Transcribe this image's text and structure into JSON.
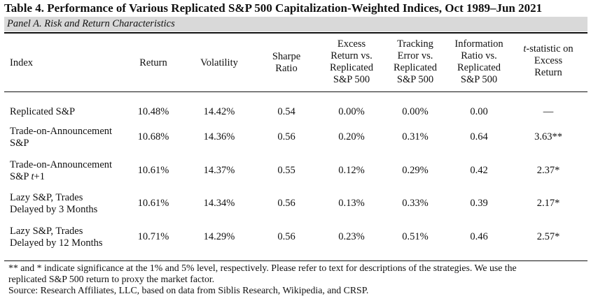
{
  "title": "Table 4. Performance of Various Replicated S&P 500 Capitalization-Weighted Indices, Oct 1989–Jun 2021",
  "panel": "Panel A. Risk and Return Characteristics",
  "headers": {
    "index": "Index",
    "return": "Return",
    "volatility": "Volatility",
    "sharpe": [
      "Sharpe",
      "Ratio"
    ],
    "excess": [
      "Excess",
      "Return vs.",
      "Replicated",
      "S&P 500"
    ],
    "tracking": [
      "Tracking",
      "Error vs.",
      "Replicated",
      "S&P 500"
    ],
    "info": [
      "Information",
      "Ratio vs.",
      "Replicated",
      "S&P 500"
    ],
    "tstat": [
      "t-statistic on",
      "Excess",
      "Return"
    ]
  },
  "rows": [
    {
      "name": [
        "Replicated S&P"
      ],
      "return": "10.48%",
      "volatility": "14.42%",
      "sharpe": "0.54",
      "excess": "0.00%",
      "tracking": "0.00%",
      "info": "0.00",
      "tstat": "—"
    },
    {
      "name": [
        "Trade-on-Announcement",
        "S&P"
      ],
      "return": "10.68%",
      "volatility": "14.36%",
      "sharpe": "0.56",
      "excess": "0.20%",
      "tracking": "0.31%",
      "info": "0.64",
      "tstat": "3.63**"
    },
    {
      "name": [
        "Trade-on-Announcement",
        "S&P t+1"
      ],
      "return": "10.61%",
      "volatility": "14.37%",
      "sharpe": "0.55",
      "excess": "0.12%",
      "tracking": "0.29%",
      "info": "0.42",
      "tstat": "2.37*"
    },
    {
      "name": [
        "Lazy S&P, Trades",
        "Delayed by 3 Months"
      ],
      "return": "10.61%",
      "volatility": "14.34%",
      "sharpe": "0.56",
      "excess": "0.13%",
      "tracking": "0.33%",
      "info": "0.39",
      "tstat": "2.17*"
    },
    {
      "name": [
        "Lazy S&P, Trades",
        "Delayed by 12 Months"
      ],
      "return": "10.71%",
      "volatility": "14.29%",
      "sharpe": "0.56",
      "excess": "0.23%",
      "tracking": "0.51%",
      "info": "0.46",
      "tstat": "2.57*"
    }
  ],
  "notes": [
    "** and * indicate significance at the 1% and 5% level, respectively. Please refer to text for descriptions of the strategies. We use the",
    "replicated S&P 500 return to proxy the market factor.",
    "Source: Research Affiliates, LLC, based on data from Siblis Research, Wikipedia, and CRSP."
  ]
}
